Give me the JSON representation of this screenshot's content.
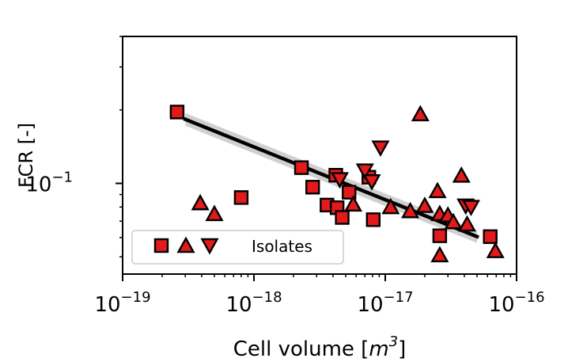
{
  "chart_data": {
    "type": "scatter",
    "title": "",
    "xlabel": "Cell volume [m³]",
    "ylabel": "FCR [-]",
    "xscale": "log",
    "yscale": "log",
    "xlim": [
      1e-19,
      1e-16
    ],
    "ylim": [
      0.0425,
      0.4
    ],
    "xtick_labels": [
      {
        "value": 1e-19,
        "base": "10",
        "exp": "−19"
      },
      {
        "value": 1e-18,
        "base": "10",
        "exp": "−18"
      },
      {
        "value": 1e-17,
        "base": "10",
        "exp": "−17"
      },
      {
        "value": 1e-16,
        "base": "10",
        "exp": "−16"
      }
    ],
    "ytick_labels": [
      {
        "value": 0.1,
        "base": "10",
        "exp": "−1"
      }
    ],
    "grid": false,
    "legend": {
      "position": "lower-left",
      "label": "Isolates"
    },
    "colors": {
      "marker_fill": "#e31a1c",
      "marker_edge": "#000000",
      "fit_line": "#000000",
      "fit_band": "#d0d0d0"
    },
    "series": [
      {
        "marker": "square",
        "points": [
          [
            2.6e-19,
            0.196
          ],
          [
            8e-19,
            0.0875
          ],
          [
            2.3e-18,
            0.116
          ],
          [
            2.8e-18,
            0.0965
          ],
          [
            3.6e-18,
            0.0815
          ],
          [
            4.2e-18,
            0.108
          ],
          [
            4.3e-18,
            0.0795
          ],
          [
            4.7e-18,
            0.0725
          ],
          [
            5.3e-18,
            0.092
          ],
          [
            7.5e-18,
            0.106
          ],
          [
            8.1e-18,
            0.071
          ],
          [
            2.6e-17,
            0.061
          ],
          [
            6.3e-17,
            0.0605
          ]
        ]
      },
      {
        "marker": "triangle-up",
        "points": [
          [
            3.9e-19,
            0.0825
          ],
          [
            5e-19,
            0.0745
          ],
          [
            5.7e-18,
            0.0815
          ],
          [
            1.1e-17,
            0.0795
          ],
          [
            1.55e-17,
            0.0765
          ],
          [
            1.85e-17,
            0.191
          ],
          [
            2e-17,
            0.0805
          ],
          [
            2.5e-17,
            0.0925
          ],
          [
            2.6e-17,
            0.0745
          ],
          [
            2.6e-17,
            0.0505
          ],
          [
            3e-17,
            0.0735
          ],
          [
            3.3e-17,
            0.069
          ],
          [
            3.8e-17,
            0.107
          ],
          [
            4.2e-17,
            0.0675
          ],
          [
            6.9e-17,
            0.0525
          ]
        ]
      },
      {
        "marker": "triangle-down",
        "points": [
          [
            4.5e-18,
            0.1045
          ],
          [
            7e-18,
            0.1135
          ],
          [
            7.9e-18,
            0.1025
          ],
          [
            9.2e-18,
            0.141
          ],
          [
            4.1e-17,
            0.0815
          ],
          [
            4.5e-17,
            0.0805
          ]
        ]
      }
    ],
    "fit_line": {
      "x": [
        3e-19,
        5e-17
      ],
      "y": [
        0.183,
        0.0605
      ]
    }
  }
}
